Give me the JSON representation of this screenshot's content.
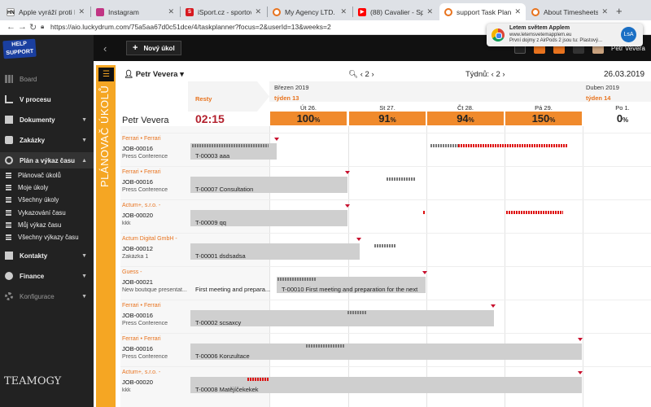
{
  "browser": {
    "tabs": [
      {
        "label": "Apple vyráží proti Netf",
        "icon": "hn-icon"
      },
      {
        "label": "Instagram",
        "icon": "instagram-icon"
      },
      {
        "label": "iSport.cz - sportovní z",
        "icon": "isport-icon"
      },
      {
        "label": "My Agency LTD. Task",
        "icon": "teamogy-icon"
      },
      {
        "label": "(88) Cavalier - Správn",
        "icon": "youtube-icon"
      },
      {
        "label": "support Task Planner",
        "icon": "teamogy-icon"
      },
      {
        "label": "About Timesheets | Te",
        "icon": "teamogy-icon"
      }
    ],
    "url": "https://aio.luckydrum.com/75a5aa67d0c51dce/4/taskplanner?focus=2&userId=13&weeks=2"
  },
  "notification": {
    "title": "Letem světem Applem",
    "site": "www.letemsvetemapplem.eu",
    "body": "První dojmy z AirPods 2 jsou tu: Plastový...",
    "badge": "LsA"
  },
  "sidebar": {
    "logo": "HELP SUPPORT",
    "items": [
      {
        "label": "Board",
        "grey": true
      },
      {
        "label": "V procesu"
      },
      {
        "label": "Dokumenty"
      },
      {
        "label": "Zakázky"
      },
      {
        "label": "Plán a výkaz času"
      }
    ],
    "subitems": [
      "Plánovač úkolů",
      "Moje úkoly",
      "Všechny úkoly",
      "Vykazování času",
      "Můj výkaz času",
      "Všechny výkazy času"
    ],
    "items2": [
      {
        "label": "Kontakty"
      },
      {
        "label": "Finance"
      },
      {
        "label": "Konfigurace",
        "grey": true
      }
    ],
    "brand": "TEAMOGY"
  },
  "topbar": {
    "new_task": "Nový úkol",
    "user": "Petr Vevera"
  },
  "planner": {
    "side_label": "PLÁNOVAČ ÚKOLŮ",
    "user_select": "Petr Vevera",
    "zoom_value": "2",
    "weeks_label": "Týdnů:",
    "weeks_value": "2",
    "date": "26.03.2019",
    "months": [
      "Březen 2019",
      "Duben 2019"
    ],
    "weeks": [
      "týden 13",
      "týden 14"
    ],
    "resty": "Resty",
    "person": "Petr Vevera",
    "total": "02:15",
    "days": [
      {
        "name": "Út 26.",
        "load": "100",
        "unit": "%",
        "color": "#f08a2c"
      },
      {
        "name": "St 27.",
        "load": "91",
        "unit": "%",
        "color": "#f08a2c"
      },
      {
        "name": "Čt 28.",
        "load": "94",
        "unit": "%",
        "color": "#f08a2c"
      },
      {
        "name": "Pá 29.",
        "load": "150",
        "unit": "%",
        "color": "#f08a2c"
      },
      {
        "name": "Po 1.",
        "load": "0",
        "unit": "%",
        "color": "#ffffff"
      }
    ],
    "rows": [
      {
        "client": "Ferrari • Ferrari",
        "job": "JOB-00016",
        "desc": "Press Conference",
        "task": "T-00003 aaa",
        "extra": ""
      },
      {
        "client": "Ferrari • Ferrari",
        "job": "JOB-00016",
        "desc": "Press Conference",
        "task": "T-00007 Consultation",
        "extra": ""
      },
      {
        "client": "Actum+, s.r.o. -",
        "job": "JOB-00020",
        "desc": "kkk",
        "task": "T-00009 qq",
        "extra": ""
      },
      {
        "client": "Actum Digital GmbH -",
        "job": "JOB-00012",
        "desc": "Zakázka 1",
        "task": "T-00001 dsdsadsa",
        "extra": ""
      },
      {
        "client": "Guess -",
        "job": "JOB-00021",
        "desc": "New boutique presentat...",
        "task": "T-00010 First meeting and preparation for the next",
        "extra": "First meeting and prepara..."
      },
      {
        "client": "Ferrari • Ferrari",
        "job": "JOB-00016",
        "desc": "Press Conference",
        "task": "T-00002 scsaxcy",
        "extra": ""
      },
      {
        "client": "Ferrari • Ferrari",
        "job": "JOB-00016",
        "desc": "Press Conference",
        "task": "T-00006 Konzultace",
        "extra": ""
      },
      {
        "client": "Actum+, s.r.o. -",
        "job": "JOB-00020",
        "desc": "kkk",
        "task": "T-00008 Matějíčekekek",
        "extra": ""
      }
    ]
  }
}
